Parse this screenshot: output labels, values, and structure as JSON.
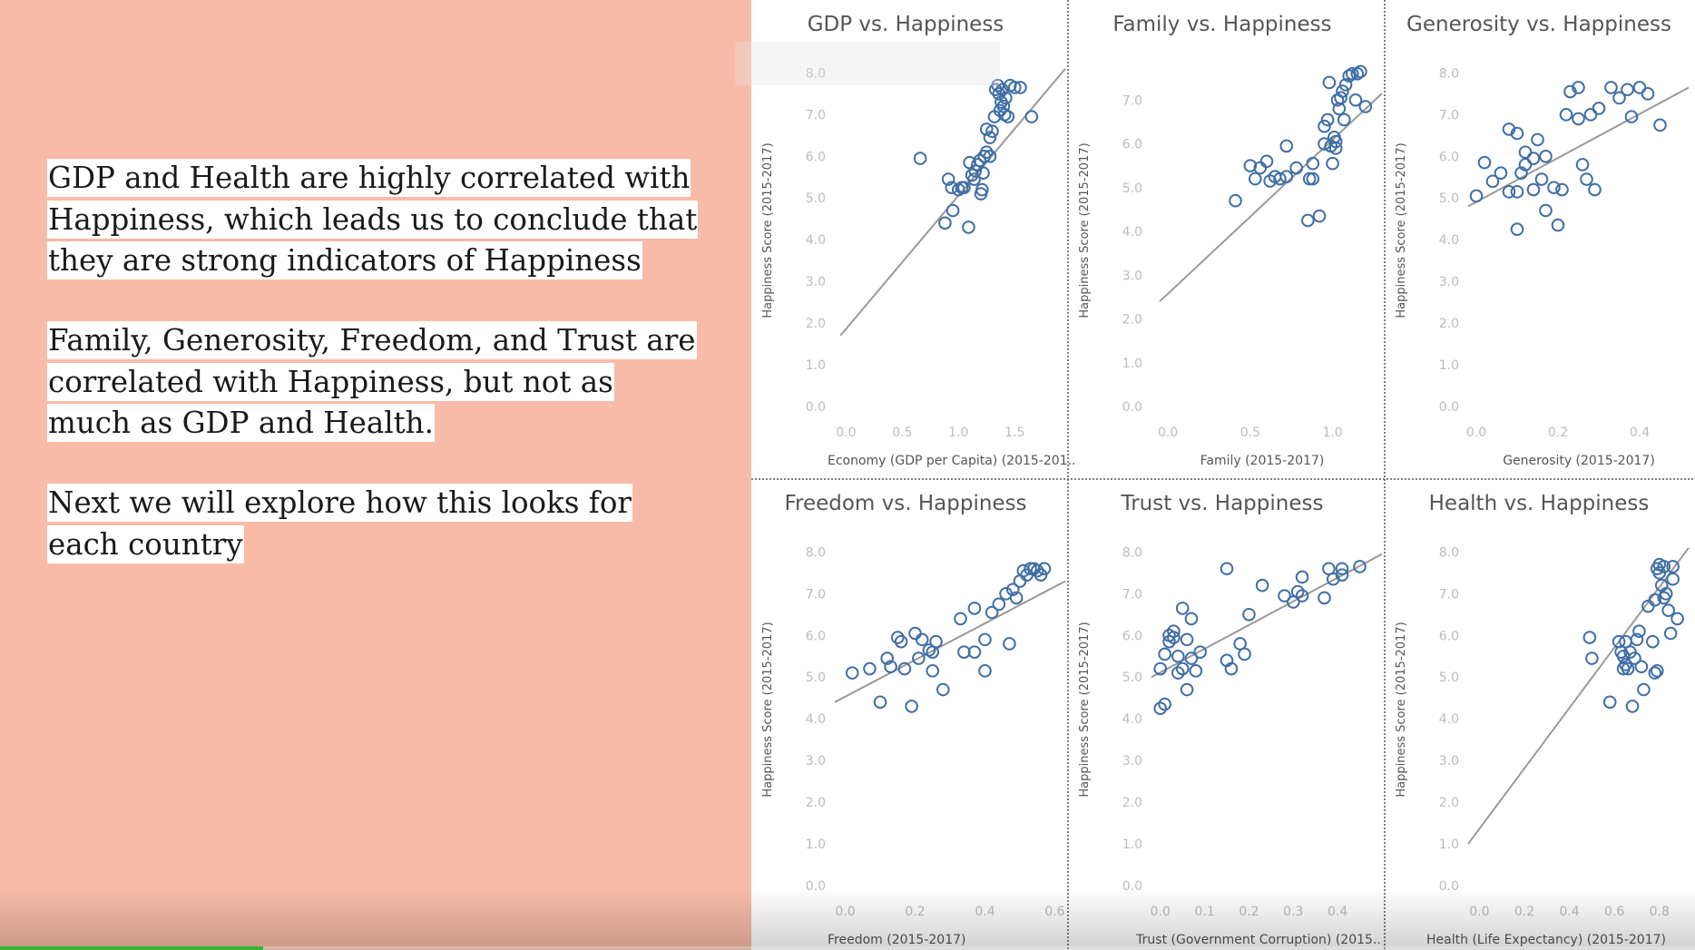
{
  "left_text": {
    "p1": "GDP and Health are highly correlated with Happiness, which leads us to conclude that they are strong indicators of Happiness",
    "p2": "Family, Generosity, Freedom, and Trust are correlated with Happiness, but not as much as GDP and Health.",
    "p3": "Next we will explore how this looks for each country"
  },
  "video_progress": 0.155,
  "colors": {
    "background": "#f8bba8",
    "point": "#3f6ea6",
    "trend": "#999999",
    "divider": "#555555",
    "progress": "#36b336"
  },
  "chart_data": [
    {
      "type": "scatter",
      "title": "GDP vs. Happiness",
      "xlabel": "Economy (GDP per Capita) (2015-201..",
      "ylabel": "Happiness Score (2015-2017)",
      "xlim": [
        -0.1,
        1.95
      ],
      "ylim": [
        0,
        8.4
      ],
      "xticks": [
        "0.0",
        "0.5",
        "1.0",
        "1.5"
      ],
      "xtick_values": [
        0,
        0.5,
        1.0,
        1.5
      ],
      "yticks": [
        "0.0",
        "1.0",
        "2.0",
        "3.0",
        "4.0",
        "5.0",
        "6.0",
        "7.0",
        "8.0"
      ],
      "ytick_values": [
        0,
        1,
        2,
        3,
        4,
        5,
        6,
        7,
        8
      ],
      "trend": [
        [
          -0.05,
          1.7
        ],
        [
          1.95,
          8.1
        ]
      ],
      "points": [
        [
          0.66,
          5.95
        ],
        [
          0.88,
          4.4
        ],
        [
          0.95,
          4.7
        ],
        [
          0.91,
          5.45
        ],
        [
          0.94,
          5.25
        ],
        [
          1.0,
          5.2
        ],
        [
          1.03,
          5.25
        ],
        [
          1.05,
          5.25
        ],
        [
          1.09,
          4.3
        ],
        [
          1.1,
          5.85
        ],
        [
          1.12,
          5.55
        ],
        [
          1.14,
          5.45
        ],
        [
          1.15,
          5.65
        ],
        [
          1.17,
          5.8
        ],
        [
          1.19,
          5.9
        ],
        [
          1.2,
          5.1
        ],
        [
          1.21,
          5.2
        ],
        [
          1.22,
          5.6
        ],
        [
          1.23,
          6.0
        ],
        [
          1.25,
          6.1
        ],
        [
          1.25,
          6.65
        ],
        [
          1.28,
          6.0
        ],
        [
          1.28,
          6.45
        ],
        [
          1.3,
          6.6
        ],
        [
          1.32,
          6.95
        ],
        [
          1.33,
          7.6
        ],
        [
          1.35,
          7.7
        ],
        [
          1.36,
          7.5
        ],
        [
          1.37,
          7.1
        ],
        [
          1.38,
          7.3
        ],
        [
          1.39,
          7.6
        ],
        [
          1.4,
          7.2
        ],
        [
          1.41,
          7.0
        ],
        [
          1.42,
          7.4
        ],
        [
          1.44,
          6.95
        ],
        [
          1.46,
          7.7
        ],
        [
          1.5,
          7.65
        ],
        [
          1.55,
          7.65
        ],
        [
          1.65,
          6.95
        ]
      ]
    },
    {
      "type": "scatter",
      "title": "Family vs. Happiness",
      "xlabel": "Family (2015-2017)",
      "ylabel": "Happiness Score (2015-2017)",
      "xlim": [
        -0.1,
        1.3
      ],
      "ylim": [
        0,
        8.0
      ],
      "xticks": [
        "0.0",
        "0.5",
        "1.0"
      ],
      "xtick_values": [
        0,
        0.5,
        1.0
      ],
      "yticks": [
        "0.0",
        "1.0",
        "2.0",
        "3.0",
        "4.0",
        "5.0",
        "6.0",
        "7.0"
      ],
      "ytick_values": [
        0,
        1,
        2,
        3,
        4,
        5,
        6,
        7
      ],
      "trend": [
        [
          -0.05,
          2.4
        ],
        [
          1.3,
          7.15
        ]
      ],
      "points": [
        [
          0.41,
          4.7
        ],
        [
          0.5,
          5.5
        ],
        [
          0.53,
          5.2
        ],
        [
          0.56,
          5.45
        ],
        [
          0.6,
          5.6
        ],
        [
          0.62,
          5.15
        ],
        [
          0.65,
          5.25
        ],
        [
          0.68,
          5.2
        ],
        [
          0.72,
          5.25
        ],
        [
          0.72,
          5.95
        ],
        [
          0.78,
          5.45
        ],
        [
          0.85,
          4.25
        ],
        [
          0.86,
          5.2
        ],
        [
          0.88,
          5.2
        ],
        [
          0.88,
          5.55
        ],
        [
          0.92,
          4.35
        ],
        [
          0.95,
          6.0
        ],
        [
          0.95,
          6.4
        ],
        [
          0.97,
          6.55
        ],
        [
          0.99,
          5.95
        ],
        [
          1.0,
          5.55
        ],
        [
          1.01,
          6.15
        ],
        [
          1.02,
          5.9
        ],
        [
          1.02,
          6.05
        ],
        [
          1.04,
          6.8
        ],
        [
          1.05,
          7.05
        ],
        [
          1.06,
          7.2
        ],
        [
          1.07,
          6.55
        ],
        [
          1.08,
          7.35
        ],
        [
          1.1,
          7.55
        ],
        [
          1.12,
          7.6
        ],
        [
          1.14,
          7.0
        ],
        [
          1.15,
          7.6
        ],
        [
          1.17,
          7.65
        ],
        [
          1.2,
          6.85
        ],
        [
          0.98,
          7.4
        ],
        [
          1.03,
          7.0
        ]
      ]
    },
    {
      "type": "scatter",
      "title": "Generosity vs. Happiness",
      "xlabel": "Generosity (2015-2017)",
      "ylabel": "Happiness Score (2015-2017)",
      "xlim": [
        -0.02,
        0.52
      ],
      "ylim": [
        0,
        8.4
      ],
      "xticks": [
        "0.0",
        "0.2",
        "0.4"
      ],
      "xtick_values": [
        0,
        0.2,
        0.4
      ],
      "yticks": [
        "0.0",
        "1.0",
        "2.0",
        "3.0",
        "4.0",
        "5.0",
        "6.0",
        "7.0",
        "8.0"
      ],
      "ytick_values": [
        0,
        1,
        2,
        3,
        4,
        5,
        6,
        7,
        8
      ],
      "trend": [
        [
          -0.02,
          4.8
        ],
        [
          0.52,
          7.65
        ]
      ],
      "points": [
        [
          0.0,
          5.05
        ],
        [
          0.02,
          5.85
        ],
        [
          0.04,
          5.4
        ],
        [
          0.06,
          5.6
        ],
        [
          0.08,
          6.65
        ],
        [
          0.08,
          5.15
        ],
        [
          0.1,
          6.55
        ],
        [
          0.1,
          5.15
        ],
        [
          0.1,
          4.25
        ],
        [
          0.11,
          5.6
        ],
        [
          0.12,
          6.1
        ],
        [
          0.12,
          5.8
        ],
        [
          0.14,
          5.95
        ],
        [
          0.14,
          5.2
        ],
        [
          0.15,
          6.4
        ],
        [
          0.16,
          5.45
        ],
        [
          0.17,
          4.7
        ],
        [
          0.17,
          6.0
        ],
        [
          0.19,
          5.25
        ],
        [
          0.2,
          4.35
        ],
        [
          0.21,
          5.2
        ],
        [
          0.22,
          7.0
        ],
        [
          0.23,
          7.55
        ],
        [
          0.25,
          7.65
        ],
        [
          0.25,
          6.9
        ],
        [
          0.26,
          5.8
        ],
        [
          0.27,
          5.45
        ],
        [
          0.28,
          7.0
        ],
        [
          0.29,
          5.2
        ],
        [
          0.3,
          7.15
        ],
        [
          0.33,
          7.65
        ],
        [
          0.35,
          7.4
        ],
        [
          0.38,
          6.95
        ],
        [
          0.4,
          7.65
        ],
        [
          0.42,
          7.5
        ],
        [
          0.45,
          6.75
        ],
        [
          0.37,
          7.6
        ]
      ]
    },
    {
      "type": "scatter",
      "title": "Freedom vs. Happiness",
      "xlabel": "Freedom (2015-2017)",
      "ylabel": "Happiness Score (2015-2017)",
      "xlim": [
        -0.03,
        0.63
      ],
      "ylim": [
        0,
        8.4
      ],
      "xticks": [
        "0.0",
        "0.2",
        "0.4",
        "0.6"
      ],
      "xtick_values": [
        0,
        0.2,
        0.4,
        0.6
      ],
      "yticks": [
        "0.0",
        "1.0",
        "2.0",
        "3.0",
        "4.0",
        "5.0",
        "6.0",
        "7.0",
        "8.0"
      ],
      "ytick_values": [
        0,
        1,
        2,
        3,
        4,
        5,
        6,
        7,
        8
      ],
      "trend": [
        [
          -0.03,
          4.4
        ],
        [
          0.63,
          7.3
        ]
      ],
      "points": [
        [
          0.02,
          5.1
        ],
        [
          0.07,
          5.2
        ],
        [
          0.1,
          4.4
        ],
        [
          0.12,
          5.45
        ],
        [
          0.13,
          5.25
        ],
        [
          0.15,
          5.95
        ],
        [
          0.16,
          5.85
        ],
        [
          0.17,
          5.2
        ],
        [
          0.19,
          4.3
        ],
        [
          0.2,
          6.05
        ],
        [
          0.21,
          5.45
        ],
        [
          0.22,
          5.9
        ],
        [
          0.24,
          5.65
        ],
        [
          0.25,
          5.6
        ],
        [
          0.25,
          5.15
        ],
        [
          0.26,
          5.85
        ],
        [
          0.28,
          4.7
        ],
        [
          0.33,
          6.4
        ],
        [
          0.34,
          5.6
        ],
        [
          0.37,
          6.65
        ],
        [
          0.37,
          5.6
        ],
        [
          0.4,
          5.15
        ],
        [
          0.4,
          5.9
        ],
        [
          0.42,
          6.55
        ],
        [
          0.44,
          6.75
        ],
        [
          0.46,
          7.0
        ],
        [
          0.47,
          5.8
        ],
        [
          0.48,
          7.1
        ],
        [
          0.49,
          6.9
        ],
        [
          0.5,
          7.3
        ],
        [
          0.51,
          7.55
        ],
        [
          0.52,
          7.45
        ],
        [
          0.53,
          7.6
        ],
        [
          0.54,
          7.6
        ],
        [
          0.55,
          7.55
        ],
        [
          0.56,
          7.45
        ],
        [
          0.57,
          7.6
        ]
      ]
    },
    {
      "type": "scatter",
      "title": "Trust vs. Happiness",
      "xlabel": "Trust (Government Corruption) (2015..",
      "ylabel": "Happiness Score (2015-2017)",
      "xlim": [
        -0.02,
        0.5
      ],
      "ylim": [
        0,
        8.4
      ],
      "xticks": [
        "0.0",
        "0.1",
        "0.2",
        "0.3",
        "0.4"
      ],
      "xtick_values": [
        0,
        0.1,
        0.2,
        0.3,
        0.4
      ],
      "yticks": [
        "0.0",
        "1.0",
        "2.0",
        "3.0",
        "4.0",
        "5.0",
        "6.0",
        "7.0",
        "8.0"
      ],
      "ytick_values": [
        0,
        1,
        2,
        3,
        4,
        5,
        6,
        7,
        8
      ],
      "trend": [
        [
          -0.02,
          5.0
        ],
        [
          0.5,
          7.95
        ]
      ],
      "points": [
        [
          0.0,
          4.25
        ],
        [
          0.01,
          4.35
        ],
        [
          0.0,
          5.2
        ],
        [
          0.01,
          5.55
        ],
        [
          0.02,
          5.85
        ],
        [
          0.02,
          6.0
        ],
        [
          0.03,
          5.95
        ],
        [
          0.03,
          6.1
        ],
        [
          0.04,
          5.5
        ],
        [
          0.04,
          5.1
        ],
        [
          0.05,
          5.2
        ],
        [
          0.05,
          6.65
        ],
        [
          0.06,
          4.7
        ],
        [
          0.06,
          5.9
        ],
        [
          0.07,
          6.4
        ],
        [
          0.07,
          5.45
        ],
        [
          0.08,
          5.15
        ],
        [
          0.09,
          5.6
        ],
        [
          0.15,
          7.6
        ],
        [
          0.15,
          5.4
        ],
        [
          0.16,
          5.2
        ],
        [
          0.18,
          5.8
        ],
        [
          0.19,
          5.55
        ],
        [
          0.2,
          6.5
        ],
        [
          0.23,
          7.2
        ],
        [
          0.28,
          6.95
        ],
        [
          0.3,
          6.8
        ],
        [
          0.31,
          7.05
        ],
        [
          0.32,
          7.4
        ],
        [
          0.32,
          6.95
        ],
        [
          0.37,
          6.9
        ],
        [
          0.38,
          7.6
        ],
        [
          0.39,
          7.35
        ],
        [
          0.41,
          7.45
        ],
        [
          0.41,
          7.6
        ],
        [
          0.45,
          7.65
        ]
      ]
    },
    {
      "type": "scatter",
      "title": "Health vs. Happiness",
      "xlabel": "Health (Life Expectancy) (2015-2017)",
      "ylabel": "Happiness Score (2015-2017)",
      "xlim": [
        -0.05,
        0.93
      ],
      "ylim": [
        0,
        8.4
      ],
      "xticks": [
        "0.0",
        "0.2",
        "0.4",
        "0.6",
        "0.8"
      ],
      "xtick_values": [
        0,
        0.2,
        0.4,
        0.6,
        0.8
      ],
      "yticks": [
        "0.0",
        "1.0",
        "2.0",
        "3.0",
        "4.0",
        "5.0",
        "6.0",
        "7.0",
        "8.0"
      ],
      "ytick_values": [
        0,
        1,
        2,
        3,
        4,
        5,
        6,
        7,
        8
      ],
      "trend": [
        [
          -0.05,
          1.0
        ],
        [
          0.93,
          8.1
        ]
      ],
      "points": [
        [
          0.49,
          5.95
        ],
        [
          0.5,
          5.45
        ],
        [
          0.58,
          4.4
        ],
        [
          0.62,
          5.85
        ],
        [
          0.63,
          5.6
        ],
        [
          0.64,
          5.2
        ],
        [
          0.64,
          5.5
        ],
        [
          0.65,
          5.3
        ],
        [
          0.65,
          5.85
        ],
        [
          0.66,
          5.2
        ],
        [
          0.67,
          5.6
        ],
        [
          0.68,
          4.3
        ],
        [
          0.69,
          5.45
        ],
        [
          0.7,
          5.9
        ],
        [
          0.71,
          6.1
        ],
        [
          0.72,
          5.25
        ],
        [
          0.73,
          4.7
        ],
        [
          0.75,
          6.7
        ],
        [
          0.77,
          5.85
        ],
        [
          0.78,
          5.1
        ],
        [
          0.79,
          5.15
        ],
        [
          0.78,
          6.85
        ],
        [
          0.79,
          7.6
        ],
        [
          0.8,
          7.5
        ],
        [
          0.81,
          7.2
        ],
        [
          0.82,
          6.9
        ],
        [
          0.82,
          7.65
        ],
        [
          0.83,
          7.0
        ],
        [
          0.84,
          6.6
        ],
        [
          0.85,
          6.05
        ],
        [
          0.86,
          7.65
        ],
        [
          0.88,
          6.4
        ],
        [
          0.86,
          7.35
        ],
        [
          0.8,
          7.7
        ]
      ]
    }
  ]
}
